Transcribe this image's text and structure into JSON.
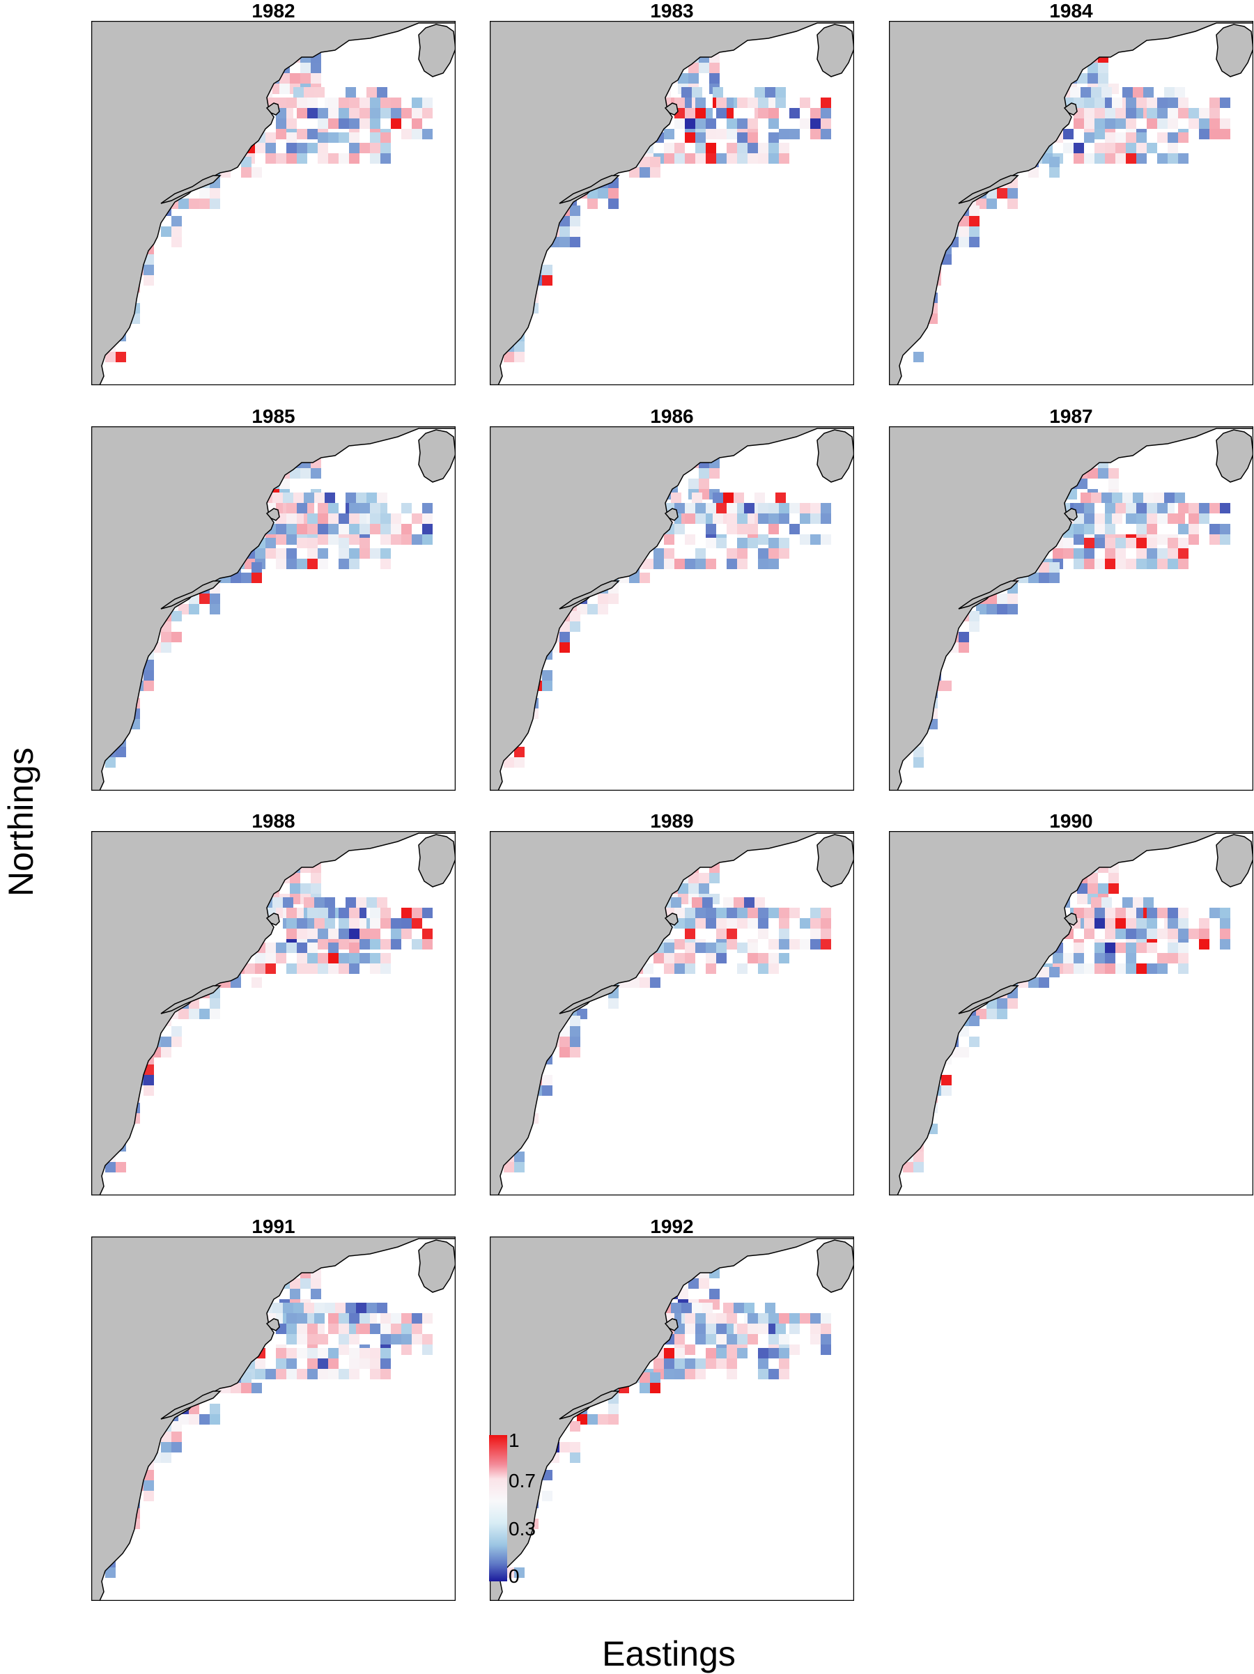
{
  "chart_data": {
    "type": "heatmap",
    "xlabel": "Eastings",
    "ylabel": "Northings",
    "panels": [
      {
        "title": "1982"
      },
      {
        "title": "1983"
      },
      {
        "title": "1984"
      },
      {
        "title": "1985"
      },
      {
        "title": "1986"
      },
      {
        "title": "1987"
      },
      {
        "title": "1988"
      },
      {
        "title": "1989"
      },
      {
        "title": "1990"
      },
      {
        "title": "1991"
      },
      {
        "title": "1992"
      }
    ],
    "colorbar": {
      "ticks": [
        "1",
        "0.7",
        "0.3",
        "0"
      ],
      "range": [
        0,
        1
      ],
      "colors": {
        "high": "#ee1111",
        "mid": "#f8f8fa",
        "low": "#1a1a9c"
      }
    },
    "land_color": "#bebebe"
  }
}
